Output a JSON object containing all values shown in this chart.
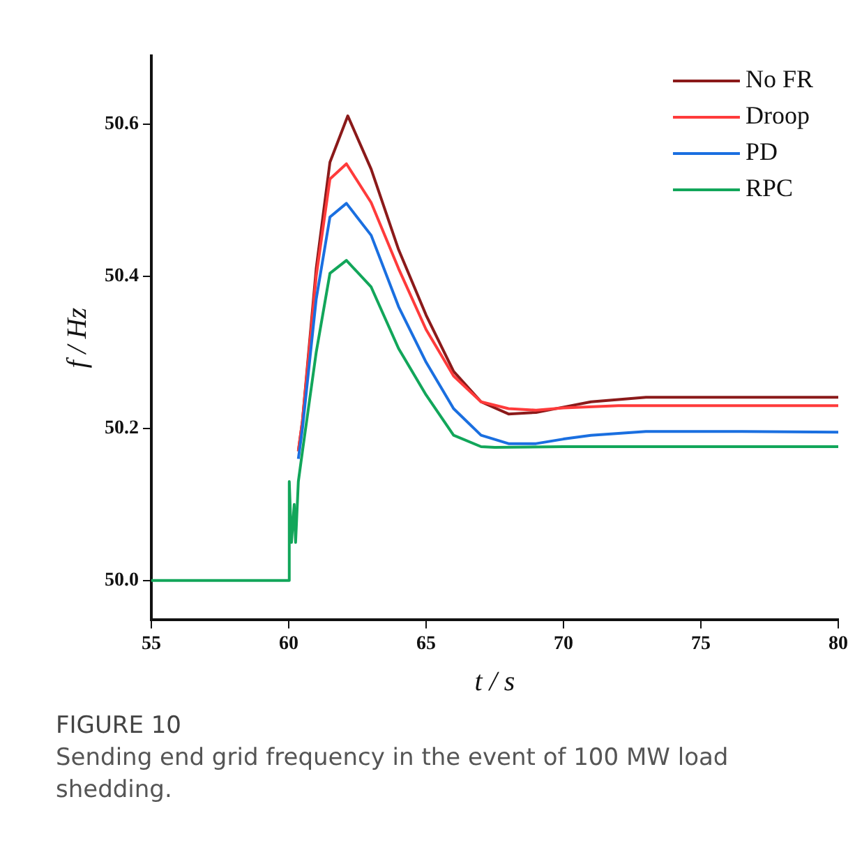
{
  "chart_data": {
    "type": "line",
    "xlabel": "t / s",
    "ylabel": "f / Hz",
    "xlim": [
      55,
      80
    ],
    "xticks": [
      55,
      60,
      65,
      70,
      75,
      80
    ],
    "ylim": [
      49.948,
      50.69
    ],
    "yticks": [
      {
        "value": 50,
        "label": "50.0"
      },
      {
        "value": 50.2,
        "label": "50.2"
      },
      {
        "value": 50.4,
        "label": "50.4"
      },
      {
        "value": 50.6,
        "label": "50.6"
      }
    ],
    "grid": false,
    "legend": "top right",
    "marker": "none",
    "line_style": "solid",
    "annotations": [
      "FIGURE 10",
      "Sending end grid frequency in the event of 100 MW load shedding."
    ],
    "series": [
      {
        "name": "No FR",
        "color": "#8b1a1a",
        "x": [
          60.35,
          60.5,
          61,
          61.5,
          62.15,
          63,
          64,
          65,
          66,
          67,
          68,
          69,
          70,
          71,
          73,
          76.5,
          80
        ],
        "values": [
          50.17,
          50.21,
          50.41,
          50.55,
          50.611,
          50.541,
          50.435,
          50.349,
          50.275,
          50.235,
          50.219,
          50.221,
          50.228,
          50.235,
          50.241,
          50.241,
          50.241
        ]
      },
      {
        "name": "Droop",
        "color": "#ff3b3b",
        "x": [
          60.35,
          60.5,
          61,
          61.5,
          62.1,
          63,
          64,
          65,
          66,
          67,
          68,
          69,
          70,
          72,
          76.5,
          80
        ],
        "values": [
          50.17,
          50.21,
          50.4,
          50.528,
          50.548,
          50.497,
          50.41,
          50.33,
          50.269,
          50.235,
          50.226,
          50.224,
          50.227,
          50.23,
          50.23,
          50.23
        ]
      },
      {
        "name": "PD",
        "color": "#1a6fe0",
        "x": [
          60.35,
          60.5,
          61,
          61.5,
          62.1,
          63,
          64,
          65,
          66,
          67,
          68,
          69,
          70,
          71,
          73,
          76.5,
          80
        ],
        "values": [
          50.16,
          50.2,
          50.37,
          50.478,
          50.496,
          50.454,
          50.36,
          50.287,
          50.226,
          50.191,
          50.18,
          50.18,
          50.186,
          50.191,
          50.196,
          50.196,
          50.195
        ]
      },
      {
        "name": "RPC",
        "color": "#12a65a",
        "x": [
          55,
          60,
          60.02,
          60.1,
          60.2,
          60.25,
          60.35,
          60.5,
          61,
          61.5,
          62.1,
          63,
          64,
          65,
          66,
          67,
          67.5,
          70,
          80
        ],
        "values": [
          50.0,
          50.0,
          50.13,
          50.05,
          50.1,
          50.05,
          50.13,
          50.17,
          50.3,
          50.404,
          50.421,
          50.386,
          50.305,
          50.244,
          50.191,
          50.176,
          50.175,
          50.176,
          50.176
        ]
      }
    ]
  }
}
